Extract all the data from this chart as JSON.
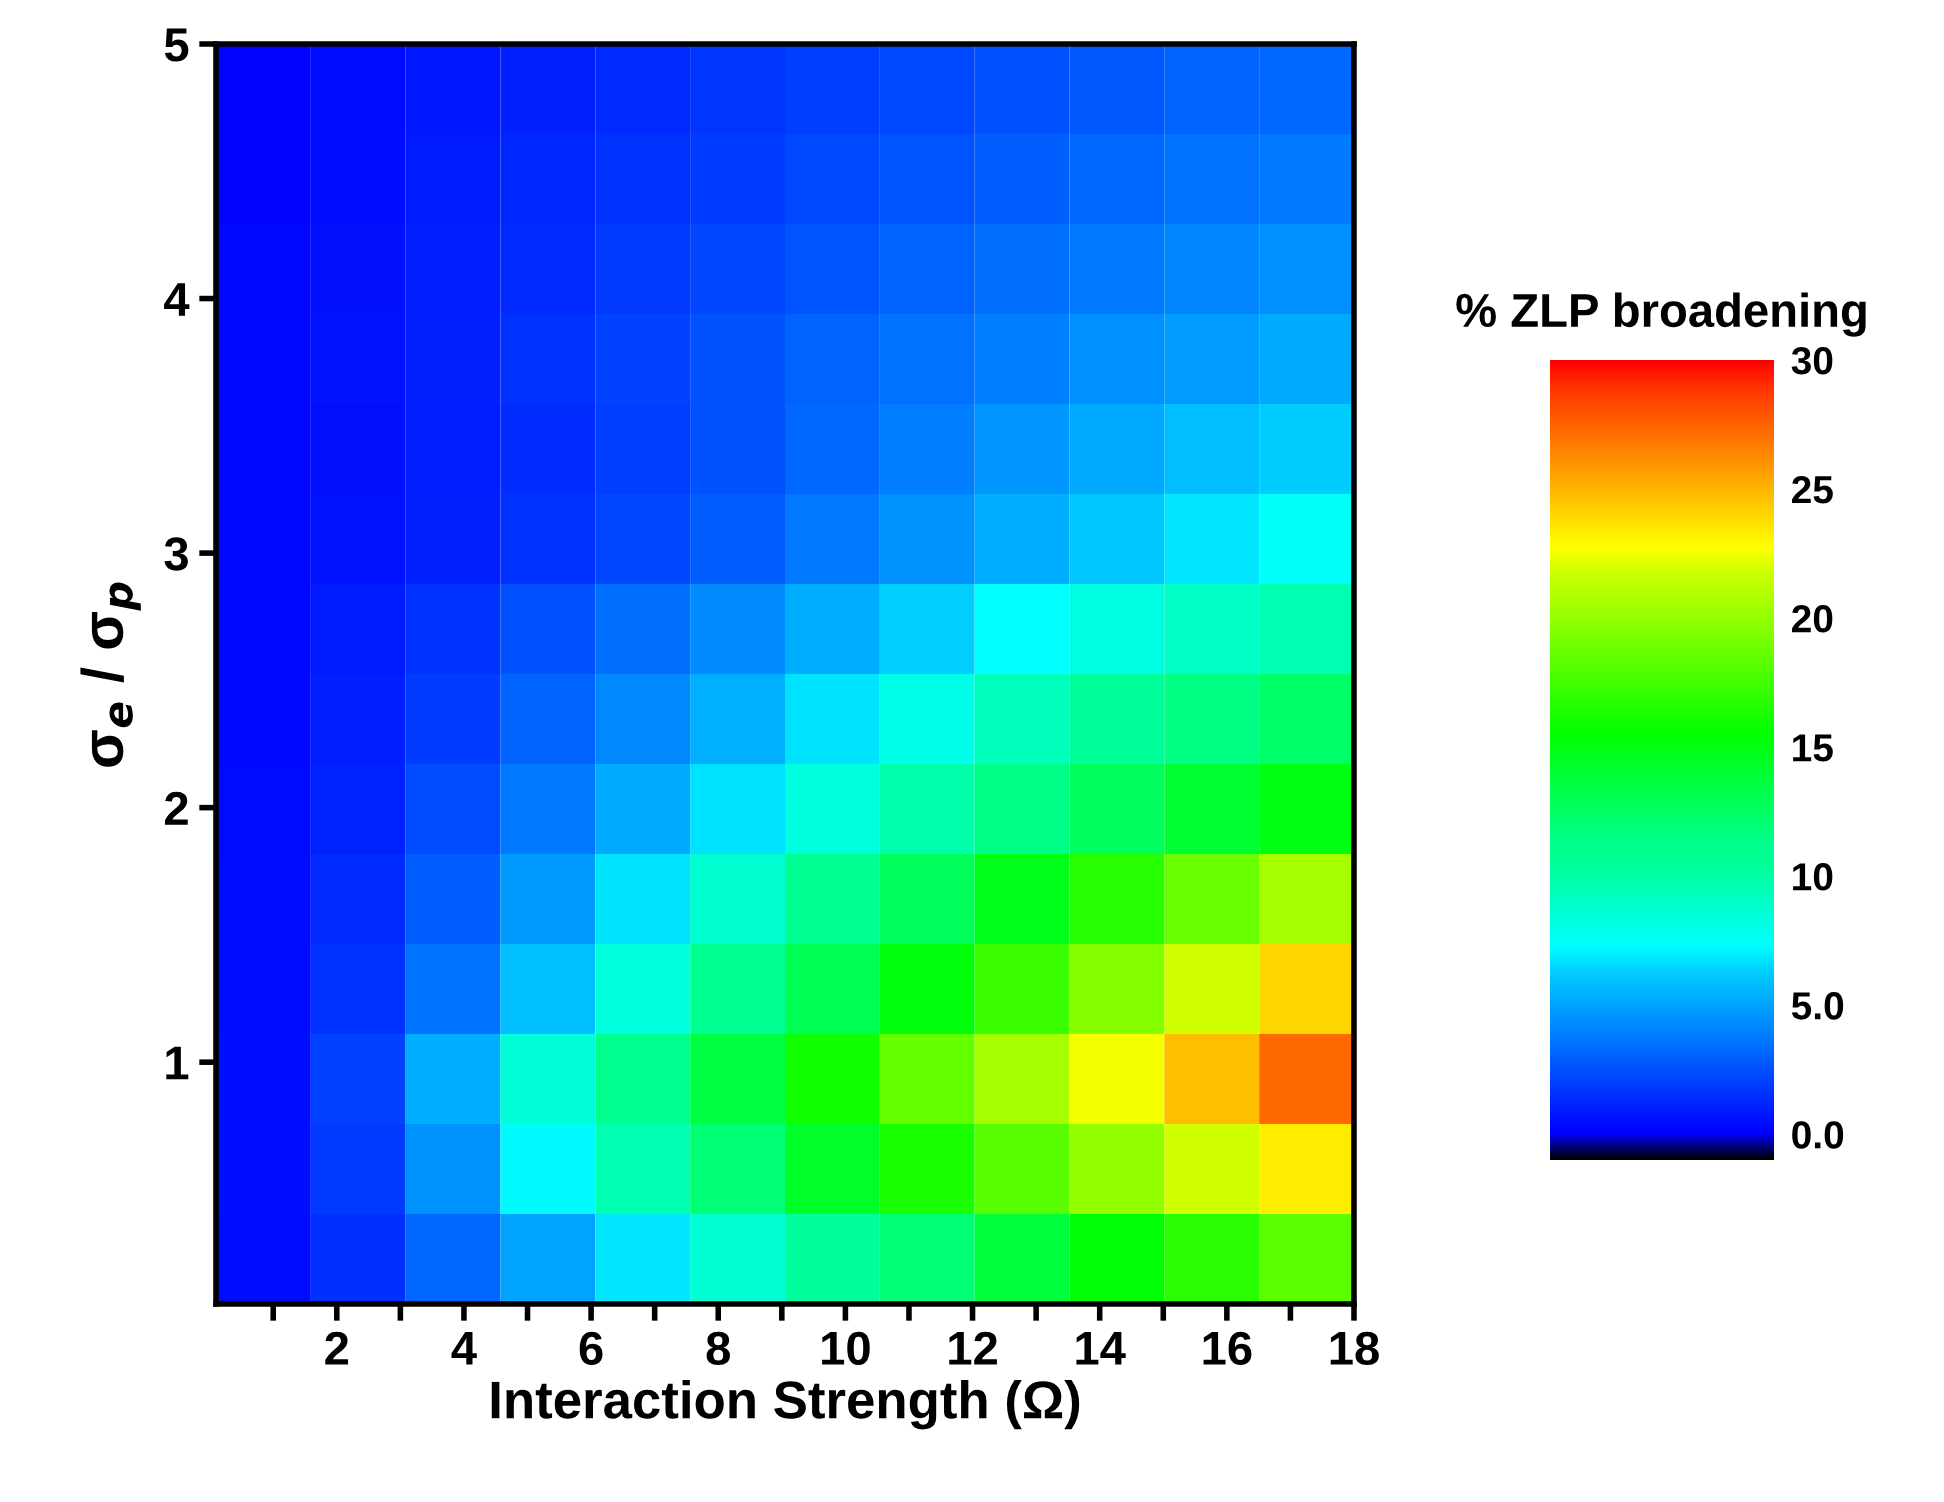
{
  "chart_data": {
    "type": "heatmap",
    "xlabel": "Interaction Strength (Ω)",
    "ylabel": "σ$_{e}$ / σ$_{p}$",
    "clabel": "% ZLP broadening",
    "xlim": [
      0.1,
      18
    ],
    "ylim": [
      0.05,
      5
    ],
    "xticks": [
      {
        "value": 1,
        "label": null
      },
      2,
      {
        "value": 3,
        "label": null
      },
      4,
      {
        "value": 5,
        "label": null
      },
      6,
      {
        "value": 7,
        "label": null
      },
      8,
      {
        "value": 9,
        "label": null
      },
      10,
      {
        "value": 11,
        "label": null
      },
      12,
      {
        "value": 13,
        "label": null
      },
      14,
      {
        "value": 15,
        "label": null
      },
      16,
      {
        "value": 17,
        "label": null
      },
      18
    ],
    "yticks": [
      1,
      2,
      3,
      4,
      5
    ],
    "clim": [
      -1,
      30
    ],
    "cticks": [
      {
        "value": 0,
        "label": "0.0"
      },
      {
        "value": 5,
        "label": "5.0"
      },
      10,
      15,
      20,
      25,
      30
    ],
    "colors": [
      "#000000",
      "#0000ff",
      "#0022ff",
      "#0044ff",
      "#0066ff",
      "#0088ff",
      "#00aaff",
      "#00ccff",
      "#00ffff",
      "#00ffdd",
      "#00ffbb",
      "#00ff99",
      "#00ff88",
      "#00ff66",
      "#00ff44",
      "#00ff22",
      "#00ff00",
      "#22ff00",
      "#44ff00",
      "#66ff00",
      "#88ff00",
      "#aaff00",
      "#ccff00",
      "#ffff00",
      "#ffdd00",
      "#ffbb00",
      "#ff9900",
      "#ff7700",
      "#ff5500",
      "#ff3300",
      "#ff0000"
    ],
    "cells": [
      [
        0.2,
        0.45,
        0.75,
        1.05,
        1.35,
        1.65,
        1.95,
        2.25,
        2.5,
        2.75,
        3.0,
        3.2
      ],
      [
        0.2,
        0.5,
        0.85,
        1.2,
        1.55,
        1.9,
        2.25,
        2.6,
        2.9,
        3.2,
        3.5,
        3.75
      ],
      [
        0.25,
        0.55,
        0.95,
        1.35,
        1.8,
        2.2,
        2.6,
        3.0,
        3.4,
        3.75,
        4.1,
        4.4
      ],
      [
        0.25,
        0.6,
        1.05,
        1.55,
        2.05,
        2.55,
        3.05,
        3.5,
        3.95,
        4.4,
        4.8,
        5.2
      ],
      [
        0.25,
        0.55,
        0.95,
        1.4,
        1.95,
        2.55,
        3.2,
        3.9,
        4.6,
        5.2,
        5.8,
        6.25
      ],
      [
        0.25,
        0.6,
        1.05,
        1.6,
        2.2,
        2.9,
        3.7,
        4.5,
        5.3,
        6.1,
        6.8,
        7.5
      ],
      [
        0.3,
        0.85,
        1.6,
        2.5,
        3.4,
        4.3,
        5.3,
        6.3,
        7.3,
        8.2,
        9.0,
        9.7
      ],
      [
        0.3,
        0.95,
        1.9,
        3.0,
        4.2,
        5.4,
        6.7,
        8.0,
        9.3,
        10.4,
        11.5,
        12.4
      ],
      [
        0.35,
        1.1,
        2.3,
        3.7,
        5.2,
        6.7,
        8.3,
        9.8,
        11.3,
        12.7,
        14.0,
        15.0
      ],
      [
        0.4,
        1.35,
        2.9,
        4.7,
        6.7,
        8.7,
        10.8,
        12.8,
        14.8,
        16.7,
        18.7,
        20.5
      ],
      [
        0.45,
        1.6,
        3.6,
        5.9,
        8.3,
        10.7,
        13.0,
        15.2,
        17.3,
        19.5,
        21.8,
        24.0
      ],
      [
        0.5,
        2.0,
        5.3,
        8.5,
        11.0,
        13.5,
        16.0,
        18.5,
        20.5,
        22.5,
        24.7,
        27.3
      ],
      [
        0.5,
        1.8,
        4.5,
        7.2,
        9.7,
        12.0,
        14.3,
        16.3,
        18.2,
        20.0,
        21.8,
        23.3
      ],
      [
        0.4,
        1.5,
        3.2,
        5.0,
        6.8,
        8.6,
        10.3,
        12.0,
        13.7,
        15.3,
        16.8,
        18.3
      ]
    ]
  }
}
